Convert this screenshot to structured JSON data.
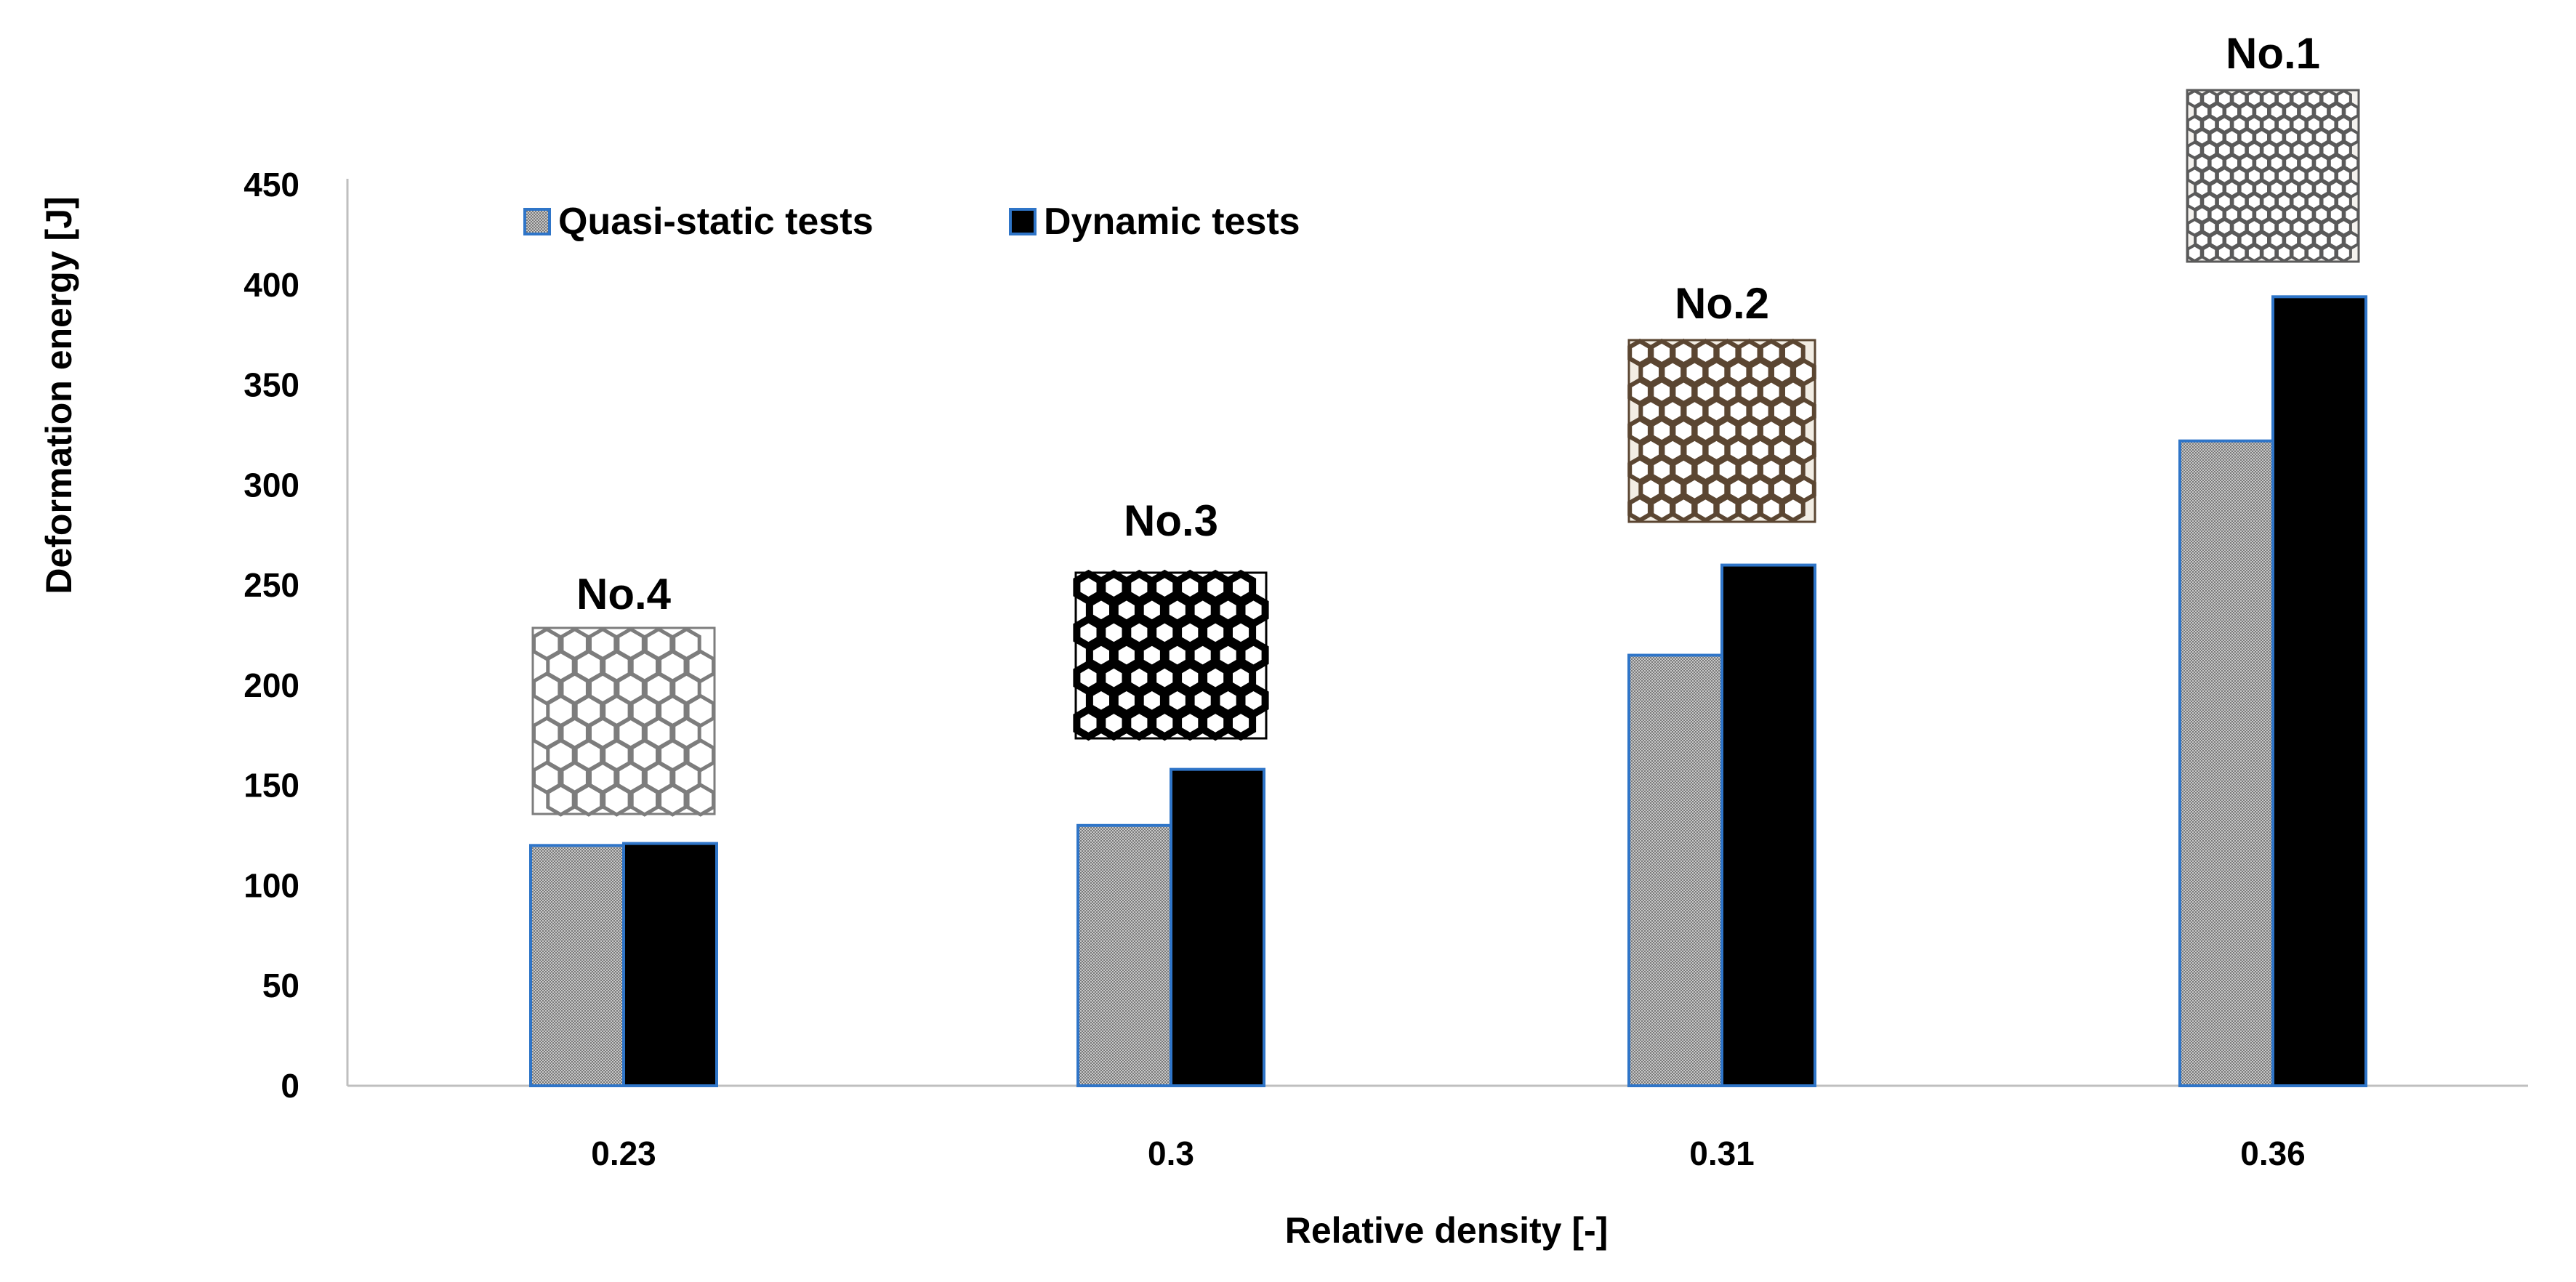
{
  "chart_data": {
    "type": "bar",
    "title": "",
    "xlabel": "Relative density [-]",
    "ylabel": "Deformation energy [J]",
    "ylim": [
      0,
      450
    ],
    "yticks": [
      0,
      50,
      100,
      150,
      200,
      250,
      300,
      350,
      400,
      450
    ],
    "categories": [
      "0.23",
      "0.3",
      "0.31",
      "0.36"
    ],
    "series": [
      {
        "name": "Quasi-static tests",
        "values": [
          120,
          130,
          215,
          322
        ],
        "pattern": "dotted-gray"
      },
      {
        "name": "Dynamic tests",
        "values": [
          121,
          158,
          260,
          394
        ],
        "pattern": "solid-black"
      }
    ],
    "annotations": [
      {
        "category": "0.23",
        "label": "No.4",
        "style": "light-gray honeycomb"
      },
      {
        "category": "0.3",
        "label": "No.3",
        "style": "black honeycomb"
      },
      {
        "category": "0.31",
        "label": "No.2",
        "style": "brown honeycomb"
      },
      {
        "category": "0.36",
        "label": "No.1",
        "style": "fine gray honeycomb"
      }
    ],
    "legend_position": "top-left",
    "grid": false
  },
  "colors": {
    "bar_edge": "#2f75c8",
    "quasi_fill": "#8c8c8c",
    "dynamic_fill": "#000000",
    "axis": "#bfbfbf",
    "text": "#000000"
  }
}
